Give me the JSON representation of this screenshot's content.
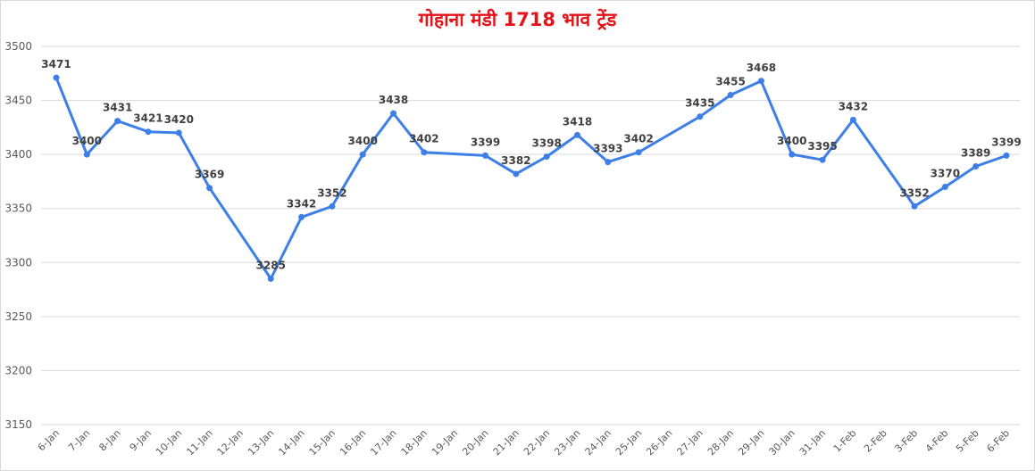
{
  "chart_data": {
    "type": "line",
    "title": "गोहाना मंडी 1718 भाव ट्रेंड",
    "xlabel": "",
    "ylabel": "",
    "ylim": [
      3150,
      3500
    ],
    "yticks": [
      3150,
      3200,
      3250,
      3300,
      3350,
      3400,
      3450,
      3500
    ],
    "grid": true,
    "legend": "none",
    "line_color": "#3d7fe6",
    "categories": [
      "6-Jan",
      "7-Jan",
      "8-Jan",
      "9-Jan",
      "10-Jan",
      "11-Jan",
      "12-Jan",
      "13-Jan",
      "14-Jan",
      "15-Jan",
      "16-Jan",
      "17-Jan",
      "18-Jan",
      "19-Jan",
      "20-Jan",
      "21-Jan",
      "22-Jan",
      "23-Jan",
      "24-Jan",
      "25-Jan",
      "26-Jan",
      "27-Jan",
      "28-Jan",
      "29-Jan",
      "30-Jan",
      "31-Jan",
      "1-Feb",
      "2-Feb",
      "3-Feb",
      "4-Feb",
      "5-Feb",
      "6-Feb"
    ],
    "values": [
      3471,
      3400,
      3431,
      3421,
      3420,
      3369,
      null,
      3285,
      3342,
      3352,
      3400,
      3438,
      3402,
      null,
      3399,
      3382,
      3398,
      3418,
      3393,
      3402,
      null,
      3435,
      3455,
      3468,
      3400,
      3395,
      3432,
      null,
      3352,
      3370,
      3389,
      3399
    ]
  }
}
